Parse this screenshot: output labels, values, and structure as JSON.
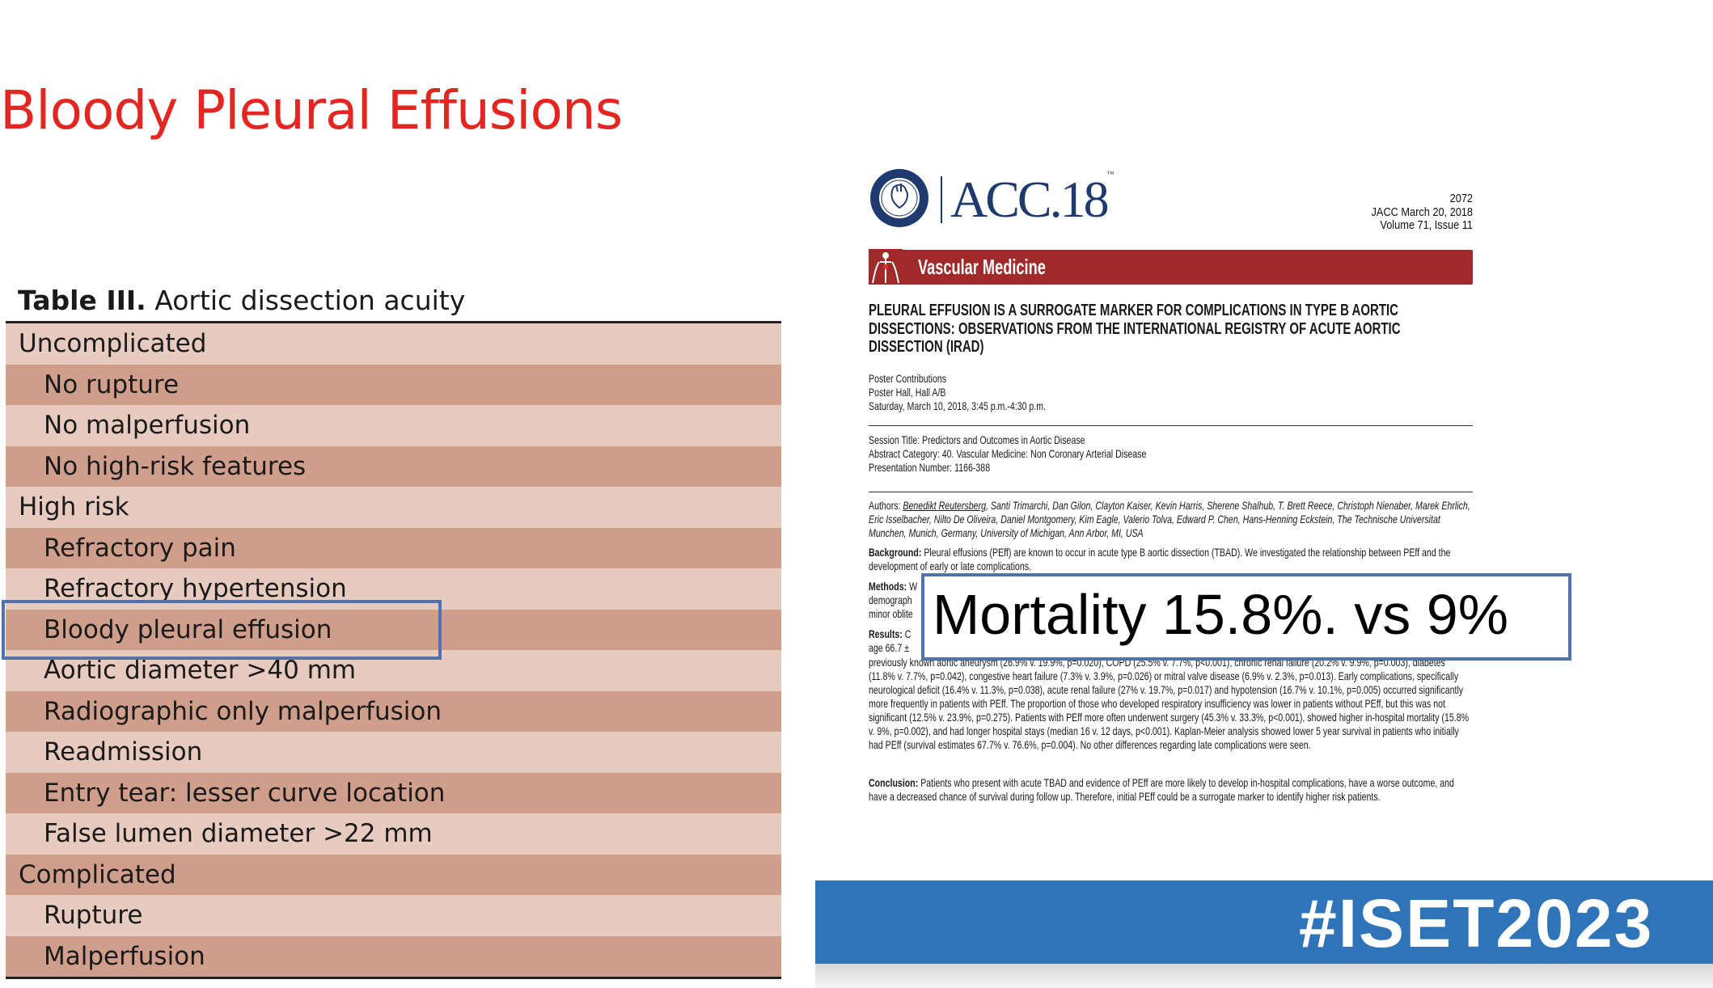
{
  "slide": {
    "title": "Bloody Pleural Effusions"
  },
  "table": {
    "caption_bold": "Table III.",
    "caption_rest": " Aortic dissection acuity",
    "rows": [
      {
        "label": "Uncomplicated",
        "level": 0
      },
      {
        "label": "No rupture",
        "level": 1
      },
      {
        "label": "No malperfusion",
        "level": 1
      },
      {
        "label": "No high-risk features",
        "level": 1
      },
      {
        "label": "High risk",
        "level": 0
      },
      {
        "label": "Refractory pain",
        "level": 1
      },
      {
        "label": "Refractory hypertension",
        "level": 1
      },
      {
        "label": "Bloody pleural effusion",
        "level": 1,
        "highlighted": true
      },
      {
        "label": "Aortic diameter >40 mm",
        "level": 1
      },
      {
        "label": "Radiographic only malperfusion",
        "level": 1
      },
      {
        "label": "Readmission",
        "level": 1
      },
      {
        "label": "Entry tear: lesser curve location",
        "level": 1
      },
      {
        "label": "False lumen diameter >22 mm",
        "level": 1
      },
      {
        "label": "Complicated",
        "level": 0
      },
      {
        "label": "Rupture",
        "level": 1
      },
      {
        "label": "Malperfusion",
        "level": 1
      }
    ],
    "colors": {
      "light": "#e8cbbf",
      "dark": "#d09f8c",
      "highlight": "#4f72b0"
    }
  },
  "abstract": {
    "logo_text": "AMERICAN COLLEGE OF CARDIOLOGY",
    "brand": "ACC.18",
    "brand_tm": "™",
    "page": "2072",
    "journal": "JACC March 20, 2018",
    "volume": "Volume 71, Issue 11",
    "section": "Vascular Medicine",
    "section_color": "#a0292a",
    "title": "PLEURAL EFFUSION IS A SURROGATE MARKER FOR COMPLICATIONS IN TYPE B AORTIC DISSECTIONS: OBSERVATIONS FROM THE INTERNATIONAL REGISTRY OF ACUTE AORTIC DISSECTION (IRAD)",
    "poster_lines": [
      "Poster Contributions",
      "Poster Hall, Hall A/B",
      "Saturday, March 10, 2018, 3:45 p.m.-4:30 p.m."
    ],
    "session_lines": [
      "Session Title: Predictors and Outcomes in Aortic Disease",
      "Abstract Category: 40. Vascular Medicine: Non Coronary Arterial Disease",
      "Presentation Number: 1166-388"
    ],
    "authors_label": "Authors: ",
    "presenting_author": "Benedikt Reutersberg",
    "authors_rest": ", Santi Trimarchi, Dan Gilon, Clayton Kaiser, Kevin Harris, Sherene Shalhub, T. Brett Reece, Christoph Nienaber, Marek Ehrlich, Eric Isselbacher, Nilto De Oliveira, Daniel Montgomery, Kim Eagle, Valerio Tolva, Edward P. Chen, Hans-Henning Eckstein, The Technische Universitat Munchen, Munich, Germany, University of Michigan, Ann Arbor, MI, USA",
    "background_label": "Background:",
    "background": " Pleural effusions (PEff) are known to occur in acute type B aortic dissection (TBAD). We investigated the relationship between PEff and the development of early or late complications.",
    "methods_label": "Methods:",
    "methods_fragments": [
      " W",
      "demograph",
      "minor oblite"
    ],
    "results_label": "Results:",
    "results_fragments": [
      " C",
      "age 66.7 ±"
    ],
    "results": "previously known aortic aneurysm (26.9% v. 19.9%, p=0.020), COPD (25.5% v. 7.7%, p<0.001), chronic renal failure (20.2% v. 9.9%, p=0.003), diabetes (11.8% v. 7.7%, p=0.042), congestive heart failure (7.3% v. 3.9%, p=0.026) or mitral valve disease (6.9% v. 2.3%, p=0.013). Early complications, specifically neurological deficit (16.4% v. 11.3%, p=0.038), acute renal failure (27% v. 19.7%, p=0.017) and hypotension (16.7% v. 10.1%, p=0.005) occurred significantly more frequently in patients with PEff. The proportion of those who developed respiratory insufficiency was lower in patients without PEff, but this was not significant (12.5% v. 23.9%, p=0.275). Patients with PEff more often underwent surgery (45.3% v. 33.3%, p<0.001), showed higher in-hospital mortality (15.8% v. 9%, p=0.002), and had longer hospital stays (median 16 v. 12 days, p<0.001). Kaplan-Meier analysis showed lower 5 year survival in patients who initially had PEff (survival estimates 67.7% v. 76.6%, p=0.004). No other differences regarding late complications were seen.",
    "conclusion_label": "Conclusion:",
    "conclusion": " Patients who present with acute TBAD and evidence of PEff are more likely to develop in-hospital complications, have a worse outcome, and have a decreased chance of survival during follow up. Therefore, initial PEff could be a surrogate marker to identify higher risk patients."
  },
  "callout": {
    "text": "Mortality 15.8%. vs 9%",
    "border_color": "#4f72b0"
  },
  "footer": {
    "hashtag": "#ISET2023",
    "color": "#2f74b8"
  }
}
